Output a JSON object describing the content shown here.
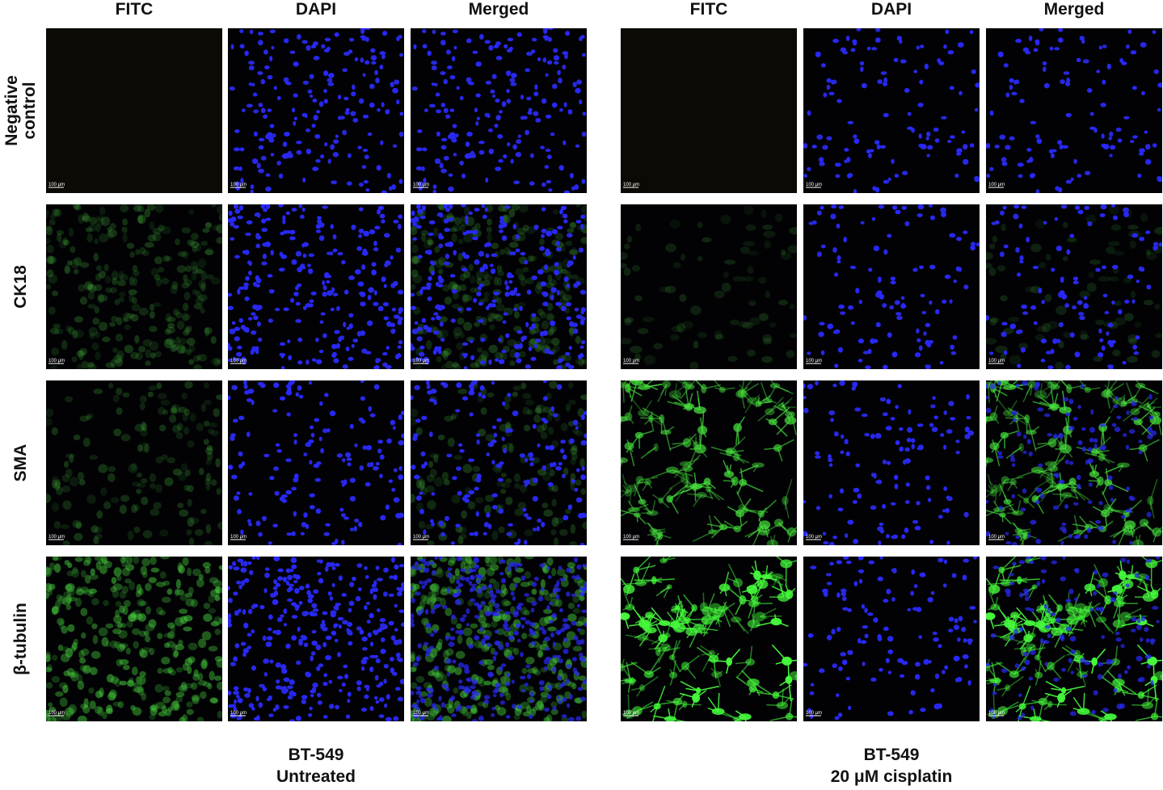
{
  "groups": [
    {
      "columns": [
        "FITC",
        "DAPI",
        "Merged"
      ],
      "caption": [
        "BT-549",
        "Untreated"
      ]
    },
    {
      "columns": [
        "FITC",
        "DAPI",
        "Merged"
      ],
      "caption": [
        "BT-549",
        "20 μM cisplatin"
      ]
    }
  ],
  "row_labels": [
    [
      "Negative",
      "control"
    ],
    [
      "CK18"
    ],
    [
      "SMA"
    ],
    [
      "β-tubulin"
    ]
  ],
  "scale_bar_label": "100 μm"
}
